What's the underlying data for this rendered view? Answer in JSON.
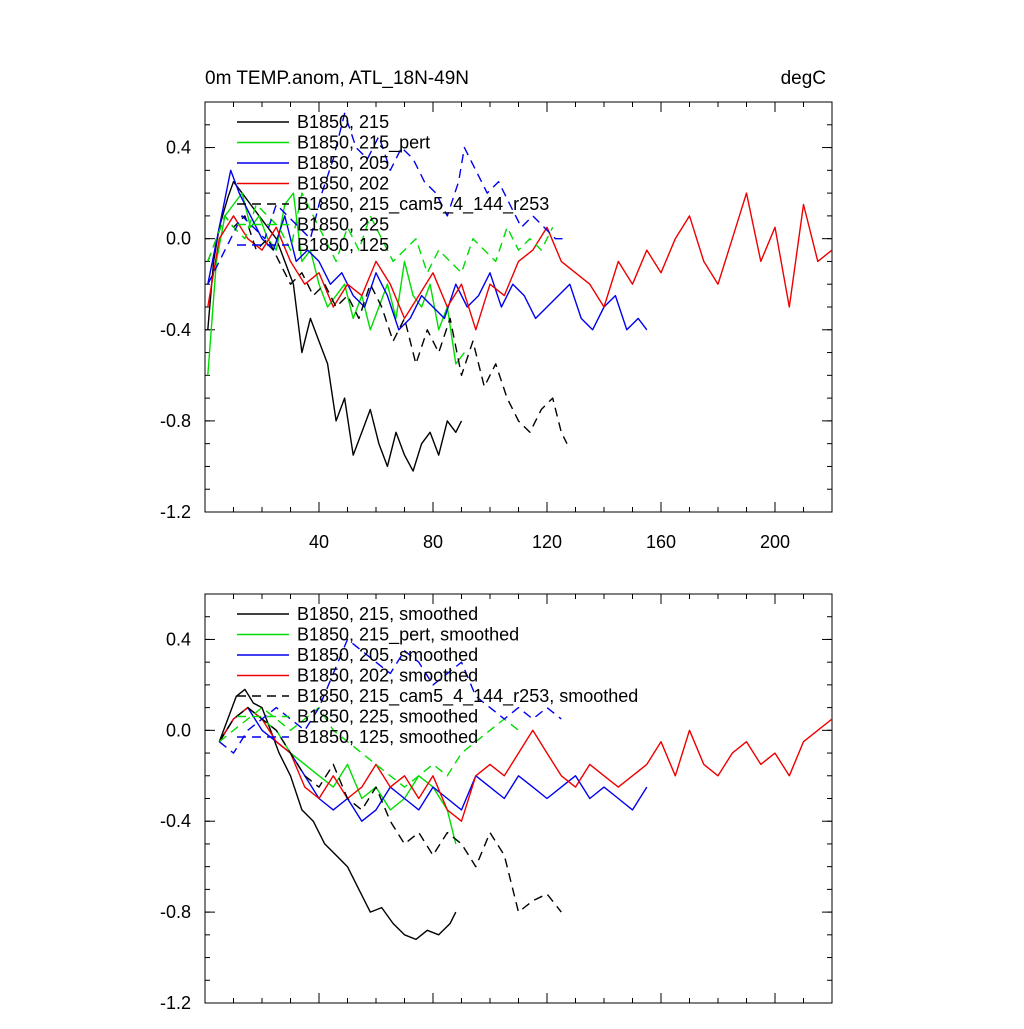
{
  "chart_data": [
    {
      "type": "line",
      "title": "0m TEMP.anom, ATL_18N-49N",
      "units": "degC",
      "xlim": [
        0,
        220
      ],
      "ylim": [
        -1.2,
        0.6
      ],
      "xticks": [
        40,
        80,
        120,
        160,
        200
      ],
      "xtick_labels": [
        "40",
        "80",
        "120",
        "160",
        "200"
      ],
      "yticks": [
        -1.2,
        -0.8,
        -0.4,
        0.0,
        0.4
      ],
      "ytick_labels": [
        "-1.2",
        "-0.8",
        "-0.4",
        "0.0",
        "0.4"
      ],
      "legend_position": "top-left",
      "series": [
        {
          "name": "B1850, 215",
          "color": "#000000",
          "dash": "solid",
          "x": [
            1,
            3,
            5,
            8,
            10,
            13,
            16,
            19,
            22,
            25,
            28,
            31,
            34,
            37,
            40,
            43,
            46,
            49,
            52,
            55,
            58,
            61,
            64,
            67,
            70,
            73,
            76,
            79,
            82,
            85,
            88,
            90
          ],
          "y": [
            -0.4,
            -0.1,
            0.05,
            0.18,
            0.25,
            0.2,
            0.15,
            0.1,
            0.05,
            0.0,
            -0.1,
            -0.2,
            -0.5,
            -0.35,
            -0.45,
            -0.55,
            -0.8,
            -0.7,
            -0.95,
            -0.85,
            -0.75,
            -0.9,
            -1.0,
            -0.85,
            -0.95,
            -1.02,
            -0.9,
            -0.85,
            -0.95,
            -0.8,
            -0.85,
            -0.8
          ]
        },
        {
          "name": "B1850, 215_pert",
          "color": "#00dd00",
          "dash": "solid",
          "x": [
            1,
            4,
            7,
            10,
            13,
            16,
            19,
            22,
            25,
            28,
            31,
            34,
            37,
            40,
            43,
            46,
            49,
            52,
            55,
            58,
            61,
            64,
            67,
            70,
            73,
            76,
            79,
            82,
            85,
            88,
            91
          ],
          "y": [
            -0.6,
            -0.1,
            0.1,
            0.15,
            0.2,
            0.05,
            0.1,
            0.0,
            -0.05,
            0.15,
            0.2,
            -0.1,
            -0.05,
            -0.2,
            -0.3,
            -0.25,
            -0.2,
            -0.35,
            -0.25,
            -0.4,
            -0.3,
            -0.2,
            -0.35,
            -0.1,
            -0.25,
            -0.3,
            -0.2,
            -0.4,
            -0.3,
            -0.55,
            -0.5
          ]
        },
        {
          "name": "B1850, 205",
          "color": "#0000ee",
          "dash": "solid",
          "x": [
            1,
            5,
            9,
            12,
            16,
            20,
            24,
            28,
            32,
            36,
            40,
            44,
            48,
            52,
            56,
            60,
            64,
            68,
            72,
            76,
            80,
            84,
            88,
            92,
            96,
            100,
            104,
            108,
            112,
            116,
            120,
            124,
            128,
            132,
            136,
            140,
            144,
            148,
            152,
            155
          ],
          "y": [
            -0.2,
            0.05,
            0.3,
            0.2,
            0.1,
            0.0,
            -0.05,
            0.1,
            -0.1,
            -0.05,
            -0.1,
            -0.2,
            -0.15,
            -0.25,
            -0.3,
            -0.15,
            -0.25,
            -0.4,
            -0.35,
            -0.25,
            -0.3,
            -0.35,
            -0.2,
            -0.3,
            -0.25,
            -0.15,
            -0.3,
            -0.2,
            -0.25,
            -0.35,
            -0.3,
            -0.25,
            -0.2,
            -0.35,
            -0.4,
            -0.3,
            -0.25,
            -0.4,
            -0.35,
            -0.4
          ]
        },
        {
          "name": "B1850, 202",
          "color": "#ee0000",
          "dash": "solid",
          "x": [
            1,
            5,
            10,
            15,
            20,
            25,
            30,
            35,
            40,
            45,
            50,
            55,
            60,
            65,
            70,
            75,
            80,
            85,
            90,
            95,
            100,
            105,
            110,
            115,
            120,
            125,
            130,
            135,
            140,
            145,
            150,
            155,
            160,
            165,
            170,
            175,
            180,
            185,
            190,
            195,
            200,
            205,
            210,
            215,
            220
          ],
          "y": [
            -0.3,
            0.0,
            0.1,
            0.0,
            -0.05,
            0.05,
            -0.1,
            -0.2,
            -0.15,
            -0.3,
            -0.2,
            -0.25,
            -0.1,
            -0.2,
            -0.35,
            -0.25,
            -0.15,
            -0.3,
            -0.2,
            -0.4,
            -0.2,
            -0.25,
            -0.1,
            -0.05,
            0.05,
            -0.1,
            -0.15,
            -0.2,
            -0.3,
            -0.1,
            -0.2,
            -0.05,
            -0.15,
            0.0,
            0.1,
            -0.1,
            -0.2,
            0.0,
            0.2,
            -0.1,
            0.05,
            -0.3,
            0.15,
            -0.1,
            -0.05
          ]
        },
        {
          "name": "B1850, 215_cam5_4_144_r253",
          "color": "#000000",
          "dash": "dashed",
          "x": [
            1,
            4,
            7,
            10,
            14,
            18,
            22,
            26,
            30,
            34,
            38,
            42,
            46,
            50,
            54,
            58,
            62,
            66,
            70,
            74,
            78,
            82,
            86,
            90,
            94,
            98,
            102,
            106,
            110,
            114,
            118,
            122,
            125,
            127
          ],
          "y": [
            -0.1,
            0.0,
            0.1,
            0.05,
            0.1,
            -0.05,
            0.0,
            -0.1,
            -0.2,
            -0.15,
            -0.25,
            -0.2,
            -0.3,
            -0.25,
            -0.35,
            -0.2,
            -0.3,
            -0.45,
            -0.35,
            -0.55,
            -0.4,
            -0.5,
            -0.35,
            -0.6,
            -0.45,
            -0.65,
            -0.55,
            -0.7,
            -0.8,
            -0.85,
            -0.75,
            -0.7,
            -0.85,
            -0.9
          ]
        },
        {
          "name": "B1850, 225",
          "color": "#00dd00",
          "dash": "dashed",
          "x": [
            1,
            4,
            7,
            10,
            14,
            18,
            22,
            26,
            30,
            34,
            38,
            42,
            46,
            50,
            54,
            58,
            62,
            66,
            70,
            74,
            78,
            82,
            86,
            90,
            94,
            98,
            102,
            106,
            110,
            114,
            118,
            122
          ],
          "y": [
            -0.1,
            0.0,
            0.1,
            0.05,
            0.0,
            0.15,
            0.1,
            0.05,
            -0.05,
            0.2,
            0.1,
            0.0,
            -0.1,
            0.05,
            -0.05,
            0.1,
            0.0,
            -0.1,
            -0.05,
            0.0,
            -0.15,
            -0.05,
            -0.1,
            -0.15,
            0.0,
            -0.05,
            -0.1,
            0.05,
            -0.05,
            0.0,
            -0.05,
            0.05
          ]
        },
        {
          "name": "B1850, 125",
          "color": "#0000ee",
          "dash": "dashed",
          "x": [
            1,
            5,
            9,
            13,
            17,
            21,
            25,
            29,
            33,
            37,
            41,
            45,
            49,
            53,
            57,
            61,
            65,
            69,
            73,
            77,
            81,
            85,
            89,
            91,
            95,
            99,
            103,
            107,
            111,
            115,
            119,
            123,
            126
          ],
          "y": [
            -0.2,
            -0.1,
            0.0,
            0.1,
            0.05,
            0.0,
            0.15,
            0.1,
            0.05,
            0.0,
            0.2,
            0.35,
            0.55,
            0.4,
            0.35,
            0.45,
            0.3,
            0.4,
            0.35,
            0.25,
            0.2,
            0.1,
            0.25,
            0.4,
            0.3,
            0.2,
            0.25,
            0.15,
            0.05,
            0.1,
            0.05,
            0.0,
            0.0
          ]
        }
      ]
    },
    {
      "type": "line",
      "title": "",
      "xlim": [
        0,
        220
      ],
      "ylim": [
        -1.2,
        0.6
      ],
      "xticks": [
        40,
        80,
        120,
        160,
        200
      ],
      "xtick_labels": [],
      "yticks": [
        -1.2,
        -0.8,
        -0.4,
        0.0,
        0.4
      ],
      "ytick_labels": [
        "-1.2",
        "-0.8",
        "-0.4",
        "0.0",
        "0.4"
      ],
      "legend_position": "top-left",
      "series": [
        {
          "name": "B1850, 215, smoothed",
          "color": "#000000",
          "dash": "solid",
          "x": [
            5,
            8,
            11,
            14,
            17,
            20,
            23,
            26,
            30,
            34,
            38,
            42,
            46,
            50,
            54,
            58,
            62,
            66,
            70,
            74,
            78,
            82,
            86,
            88
          ],
          "y": [
            -0.05,
            0.05,
            0.15,
            0.18,
            0.12,
            0.1,
            0.0,
            -0.1,
            -0.2,
            -0.35,
            -0.4,
            -0.5,
            -0.55,
            -0.6,
            -0.7,
            -0.8,
            -0.78,
            -0.85,
            -0.9,
            -0.92,
            -0.88,
            -0.9,
            -0.85,
            -0.8
          ]
        },
        {
          "name": "B1850, 215_pert, smoothed",
          "color": "#00dd00",
          "dash": "solid",
          "x": [
            5,
            10,
            15,
            20,
            25,
            30,
            35,
            40,
            45,
            50,
            55,
            60,
            65,
            70,
            75,
            80,
            85,
            88
          ],
          "y": [
            -0.05,
            0.05,
            0.1,
            0.05,
            0.0,
            -0.1,
            -0.15,
            -0.2,
            -0.25,
            -0.15,
            -0.3,
            -0.25,
            -0.35,
            -0.3,
            -0.2,
            -0.25,
            -0.35,
            -0.5
          ]
        },
        {
          "name": "B1850, 205, smoothed",
          "color": "#0000ee",
          "dash": "solid",
          "x": [
            5,
            10,
            15,
            20,
            25,
            30,
            35,
            40,
            45,
            50,
            55,
            60,
            65,
            70,
            75,
            80,
            85,
            90,
            95,
            100,
            105,
            110,
            115,
            120,
            125,
            130,
            135,
            140,
            145,
            150,
            155
          ],
          "y": [
            -0.05,
            0.05,
            0.1,
            0.0,
            -0.05,
            -0.1,
            -0.2,
            -0.3,
            -0.35,
            -0.3,
            -0.4,
            -0.35,
            -0.25,
            -0.3,
            -0.35,
            -0.25,
            -0.3,
            -0.35,
            -0.2,
            -0.25,
            -0.3,
            -0.2,
            -0.25,
            -0.3,
            -0.25,
            -0.2,
            -0.3,
            -0.25,
            -0.3,
            -0.35,
            -0.25
          ]
        },
        {
          "name": "B1850, 202, smoothed",
          "color": "#ee0000",
          "dash": "solid",
          "x": [
            5,
            10,
            15,
            20,
            25,
            30,
            35,
            40,
            45,
            50,
            55,
            60,
            65,
            70,
            75,
            80,
            85,
            90,
            95,
            100,
            105,
            110,
            115,
            120,
            125,
            130,
            135,
            140,
            145,
            150,
            155,
            160,
            165,
            170,
            175,
            180,
            185,
            190,
            195,
            200,
            205,
            210,
            215,
            220
          ],
          "y": [
            -0.05,
            0.05,
            0.1,
            0.05,
            -0.05,
            -0.1,
            -0.25,
            -0.3,
            -0.2,
            -0.3,
            -0.25,
            -0.15,
            -0.25,
            -0.2,
            -0.3,
            -0.2,
            -0.35,
            -0.4,
            -0.2,
            -0.15,
            -0.2,
            -0.1,
            0.0,
            -0.1,
            -0.2,
            -0.25,
            -0.15,
            -0.2,
            -0.25,
            -0.2,
            -0.15,
            -0.05,
            -0.2,
            0.0,
            -0.15,
            -0.2,
            -0.1,
            -0.05,
            -0.15,
            -0.1,
            -0.2,
            -0.05,
            0.0,
            0.05
          ]
        },
        {
          "name": "B1850, 215_cam5_4_144_r253, smoothed",
          "color": "#000000",
          "dash": "dashed",
          "x": [
            5,
            10,
            15,
            20,
            25,
            30,
            35,
            40,
            45,
            50,
            55,
            60,
            65,
            70,
            75,
            80,
            85,
            90,
            95,
            100,
            105,
            110,
            115,
            120,
            125
          ],
          "y": [
            -0.05,
            0.05,
            0.1,
            0.05,
            0.0,
            -0.1,
            -0.2,
            -0.25,
            -0.15,
            -0.3,
            -0.35,
            -0.25,
            -0.4,
            -0.5,
            -0.45,
            -0.55,
            -0.45,
            -0.5,
            -0.6,
            -0.45,
            -0.55,
            -0.8,
            -0.75,
            -0.72,
            -0.8
          ]
        },
        {
          "name": "B1850, 225, smoothed",
          "color": "#00dd00",
          "dash": "dashed",
          "x": [
            5,
            10,
            15,
            20,
            25,
            30,
            35,
            40,
            45,
            50,
            55,
            60,
            65,
            70,
            75,
            80,
            85,
            90,
            95,
            100,
            105,
            110
          ],
          "y": [
            -0.05,
            0.0,
            0.05,
            0.1,
            0.05,
            0.0,
            0.05,
            0.1,
            0.0,
            -0.05,
            -0.1,
            -0.15,
            -0.2,
            -0.25,
            -0.2,
            -0.15,
            -0.2,
            -0.1,
            -0.05,
            0.0,
            0.05,
            0.0
          ]
        },
        {
          "name": "B1850, 125, smoothed",
          "color": "#0000ee",
          "dash": "dashed",
          "x": [
            5,
            10,
            15,
            20,
            25,
            30,
            35,
            40,
            45,
            50,
            55,
            60,
            65,
            70,
            75,
            80,
            85,
            90,
            95,
            100,
            105,
            110,
            115,
            120,
            125
          ],
          "y": [
            -0.05,
            -0.1,
            0.0,
            0.05,
            0.1,
            0.05,
            0.0,
            0.1,
            0.25,
            0.4,
            0.35,
            0.3,
            0.25,
            0.35,
            0.3,
            0.2,
            0.25,
            0.3,
            0.15,
            0.1,
            0.05,
            0.1,
            0.05,
            0.1,
            0.05
          ]
        }
      ]
    }
  ]
}
